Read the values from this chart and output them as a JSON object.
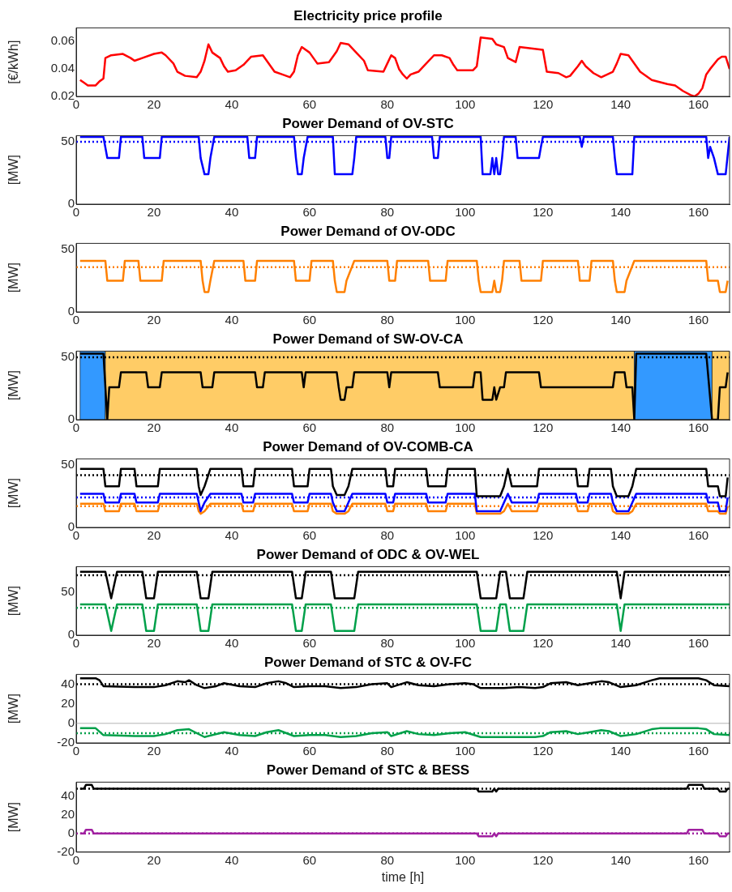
{
  "chart_data": [
    {
      "type": "line",
      "title": "Electricity price profile",
      "ylabel": "[€/kWh]",
      "xlim": [
        0,
        168
      ],
      "xticks": [
        0,
        20,
        40,
        60,
        80,
        100,
        120,
        140,
        160
      ],
      "ylim": [
        0.02,
        0.07
      ],
      "yticks": [
        0.02,
        0.04,
        0.06
      ],
      "line_style": "solid",
      "series": [
        {
          "color": "#ff0000",
          "x": [
            1,
            2,
            3,
            5,
            6,
            7,
            7.5,
            9,
            12,
            14,
            15,
            17,
            20,
            22,
            23,
            25,
            26,
            28,
            31,
            32,
            33,
            34,
            35,
            37,
            38,
            39,
            41,
            43,
            45,
            48,
            49,
            51,
            53,
            55,
            56,
            57,
            58,
            60,
            61,
            62,
            65,
            67,
            68,
            70,
            72,
            74,
            75,
            79,
            80,
            81,
            82,
            83,
            84,
            85,
            86,
            88,
            90,
            92,
            94,
            96,
            97,
            98,
            102,
            103,
            104,
            107,
            108,
            110,
            111,
            113,
            114,
            117,
            120,
            121,
            124,
            126,
            127,
            129,
            130,
            131,
            133,
            135,
            138,
            139,
            140,
            142,
            143,
            145,
            148,
            152,
            154,
            156,
            158,
            159,
            160,
            161,
            162,
            163,
            165,
            166,
            167,
            168
          ],
          "values": [
            0.032,
            0.03,
            0.028,
            0.028,
            0.031,
            0.033,
            0.048,
            0.05,
            0.051,
            0.048,
            0.046,
            0.048,
            0.051,
            0.052,
            0.05,
            0.044,
            0.038,
            0.035,
            0.034,
            0.038,
            0.046,
            0.058,
            0.052,
            0.048,
            0.042,
            0.038,
            0.039,
            0.043,
            0.049,
            0.05,
            0.046,
            0.038,
            0.036,
            0.034,
            0.038,
            0.05,
            0.056,
            0.052,
            0.048,
            0.044,
            0.045,
            0.053,
            0.059,
            0.058,
            0.052,
            0.046,
            0.039,
            0.038,
            0.044,
            0.05,
            0.048,
            0.04,
            0.036,
            0.033,
            0.036,
            0.038,
            0.044,
            0.05,
            0.05,
            0.048,
            0.043,
            0.039,
            0.039,
            0.042,
            0.063,
            0.062,
            0.058,
            0.056,
            0.048,
            0.045,
            0.056,
            0.055,
            0.054,
            0.038,
            0.037,
            0.034,
            0.035,
            0.042,
            0.046,
            0.042,
            0.037,
            0.034,
            0.038,
            0.044,
            0.051,
            0.05,
            0.046,
            0.038,
            0.032,
            0.029,
            0.028,
            0.024,
            0.021,
            0.02,
            0.022,
            0.026,
            0.036,
            0.04,
            0.047,
            0.049,
            0.049,
            0.04
          ]
        }
      ]
    },
    {
      "type": "line",
      "title": "Power Demand of OV-STC",
      "ylabel": "[MW]",
      "xlim": [
        0,
        168
      ],
      "xticks": [
        0,
        20,
        40,
        60,
        80,
        100,
        120,
        140,
        160
      ],
      "ylim": [
        0,
        55
      ],
      "yticks": [
        0,
        50
      ],
      "line_style": "solid",
      "ref_lines": [
        {
          "axis": "y",
          "value": 50,
          "color": "#0000ff",
          "line_style": "dotted"
        }
      ],
      "series": [
        {
          "color": "#0000ff",
          "x": [
            1,
            7,
            8,
            11,
            11.5,
            17,
            17.5,
            21.5,
            22,
            31.5,
            32,
            33,
            34,
            34.5,
            35.5,
            44,
            44.5,
            46,
            46.5,
            56,
            56.5,
            57,
            58,
            58.5,
            59.5,
            66,
            66.5,
            71,
            71.5,
            72,
            79.5,
            80,
            80.5,
            81,
            91.5,
            92,
            93,
            93.5,
            104,
            104.5,
            106.5,
            107,
            107.5,
            108,
            108.5,
            109,
            109.5,
            110,
            113,
            113.5,
            119,
            119.5,
            120,
            129.5,
            130,
            130.5,
            138,
            138.5,
            139,
            143,
            143.5,
            162,
            162.5,
            163,
            164,
            165,
            167,
            168
          ],
          "values": [
            54,
            54,
            37,
            37,
            54,
            54,
            37,
            37,
            54,
            54,
            37,
            24,
            24,
            37,
            54,
            54,
            37,
            37,
            54,
            54,
            37,
            24,
            24,
            37,
            54,
            54,
            24,
            24,
            37,
            54,
            54,
            37,
            37,
            54,
            54,
            37,
            37,
            54,
            54,
            24,
            24,
            37,
            24,
            37,
            24,
            24,
            37,
            54,
            54,
            37,
            37,
            46,
            54,
            54,
            46,
            54,
            54,
            37,
            24,
            24,
            54,
            54,
            37,
            46,
            37,
            24,
            24,
            54
          ]
        }
      ]
    },
    {
      "type": "line",
      "title": "Power Demand of OV-ODC",
      "ylabel": "[MW]",
      "xlim": [
        0,
        168
      ],
      "xticks": [
        0,
        20,
        40,
        60,
        80,
        100,
        120,
        140,
        160
      ],
      "ylim": [
        0,
        55
      ],
      "yticks": [
        0,
        50
      ],
      "line_style": "solid",
      "ref_lines": [
        {
          "axis": "y",
          "value": 36,
          "color": "#ff8000",
          "line_style": "dotted"
        }
      ],
      "series": [
        {
          "color": "#ff8000",
          "x": [
            1,
            7.5,
            8,
            12,
            12.5,
            16,
            16.5,
            22,
            22.5,
            32,
            32.5,
            33,
            34,
            34.5,
            35.5,
            43,
            43.5,
            46,
            46.5,
            56,
            56.5,
            60,
            60.5,
            66,
            66.5,
            67,
            69,
            69.5,
            71.5,
            80,
            80.5,
            82,
            82.5,
            90.5,
            91,
            95,
            95.5,
            103,
            103.5,
            104,
            107,
            107.5,
            108,
            109,
            109.5,
            110,
            114,
            114.5,
            119.5,
            120,
            129,
            129.5,
            132,
            132.5,
            138,
            138.5,
            139,
            141,
            141.5,
            143.5,
            162,
            162.5,
            165,
            165.5,
            167,
            167.5
          ],
          "values": [
            41,
            41,
            25,
            25,
            41,
            41,
            25,
            25,
            41,
            41,
            25,
            16,
            16,
            25,
            41,
            41,
            25,
            25,
            41,
            41,
            25,
            25,
            41,
            41,
            25,
            16,
            16,
            25,
            41,
            41,
            25,
            25,
            41,
            41,
            25,
            25,
            41,
            41,
            25,
            16,
            16,
            25,
            16,
            16,
            25,
            41,
            41,
            25,
            25,
            41,
            41,
            25,
            25,
            41,
            41,
            25,
            16,
            16,
            25,
            41,
            41,
            25,
            25,
            16,
            16,
            25
          ]
        }
      ]
    },
    {
      "type": "line",
      "title": "Power Demand of SW-OV-CA",
      "ylabel": "[MW]",
      "xlim": [
        0,
        168
      ],
      "xticks": [
        0,
        20,
        40,
        60,
        80,
        100,
        120,
        140,
        160
      ],
      "ylim": [
        0,
        55
      ],
      "yticks": [
        0,
        50
      ],
      "line_style": "solid",
      "bands": [
        {
          "axis": "x",
          "from": 1,
          "to": 7.5,
          "color": "#3399ff"
        },
        {
          "axis": "x",
          "from": 7.5,
          "to": 143.5,
          "color": "#ffcc66"
        },
        {
          "axis": "x",
          "from": 143.5,
          "to": 163.5,
          "color": "#3399ff"
        },
        {
          "axis": "x",
          "from": 163.5,
          "to": 168,
          "color": "#ffcc66"
        }
      ],
      "ref_lines": [
        {
          "axis": "y",
          "value": 50,
          "color": "#000000",
          "line_style": "dotted"
        }
      ],
      "series": [
        {
          "color": "#000000",
          "x": [
            1,
            7,
            8,
            8.5,
            11,
            11.5,
            18,
            18.5,
            21.5,
            22,
            32,
            32.5,
            35,
            35.5,
            46,
            46.5,
            48,
            48.5,
            58,
            58.5,
            59,
            67,
            67.5,
            68,
            69,
            69.5,
            71,
            71.5,
            80,
            80.5,
            81,
            93,
            93.5,
            102,
            102.5,
            104,
            104.5,
            107,
            107.5,
            108,
            109,
            110,
            110.5,
            119,
            119.5,
            138,
            138.5,
            141,
            141.5,
            143,
            143.5,
            144,
            162,
            163.5,
            165,
            165.5,
            167,
            167.5
          ],
          "values": [
            53,
            53,
            0,
            26,
            26,
            38,
            38,
            26,
            26,
            38,
            38,
            26,
            26,
            38,
            38,
            26,
            26,
            38,
            38,
            26,
            38,
            38,
            26,
            16,
            16,
            26,
            26,
            38,
            38,
            26,
            38,
            38,
            26,
            26,
            38,
            38,
            16,
            16,
            26,
            16,
            26,
            26,
            38,
            38,
            26,
            26,
            38,
            38,
            26,
            26,
            0,
            53,
            53,
            0,
            0,
            26,
            26,
            38
          ]
        }
      ]
    },
    {
      "type": "line",
      "title": "Power Demand of OV-COMB-CA",
      "ylabel": "[MW]",
      "xlim": [
        0,
        168
      ],
      "xticks": [
        0,
        20,
        40,
        60,
        80,
        100,
        120,
        140,
        160
      ],
      "ylim": [
        0,
        55
      ],
      "yticks": [
        0,
        50
      ],
      "line_style": "solid",
      "ref_lines": [
        {
          "axis": "y",
          "value": 42,
          "color": "#000000",
          "line_style": "dotted"
        },
        {
          "axis": "y",
          "value": 24,
          "color": "#0000ff",
          "line_style": "dotted"
        },
        {
          "axis": "y",
          "value": 17,
          "color": "#ff8000",
          "line_style": "dotted"
        }
      ],
      "series": [
        {
          "color": "#000000",
          "x": [
            1,
            7,
            7.5,
            11,
            11.5,
            15,
            15.5,
            21,
            21.5,
            31,
            31.5,
            32,
            33,
            34.5,
            42.5,
            43,
            45.5,
            46,
            55.5,
            56,
            59.5,
            60,
            65.5,
            66,
            67,
            69,
            70,
            71,
            79.5,
            80,
            81.5,
            82,
            90,
            90.5,
            95,
            95.5,
            102.5,
            103,
            109,
            110,
            111,
            112,
            118.5,
            119,
            128.5,
            129,
            131.5,
            132,
            137.5,
            138,
            139,
            142,
            143,
            144,
            162,
            162.5,
            165,
            165.5,
            167,
            167.5
          ],
          "values": [
            47,
            47,
            33,
            33,
            47,
            47,
            33,
            33,
            47,
            47,
            33,
            26,
            33,
            47,
            47,
            33,
            33,
            47,
            47,
            33,
            33,
            47,
            47,
            33,
            26,
            26,
            33,
            47,
            47,
            33,
            33,
            47,
            47,
            33,
            33,
            47,
            47,
            25,
            25,
            33,
            47,
            33,
            33,
            47,
            47,
            33,
            33,
            47,
            47,
            33,
            25,
            25,
            33,
            47,
            47,
            33,
            33,
            25,
            25,
            40
          ]
        },
        {
          "color": "#0000ff",
          "x": [
            1,
            7,
            7.5,
            11,
            11.5,
            15,
            15.5,
            21,
            21.5,
            31,
            31.5,
            32,
            33,
            34.5,
            42.5,
            43,
            45.5,
            46,
            55.5,
            56,
            59.5,
            60,
            65.5,
            66,
            67,
            69,
            70,
            71,
            79.5,
            80,
            81.5,
            82,
            90,
            90.5,
            95,
            95.5,
            102.5,
            103,
            109,
            110,
            111,
            112,
            118.5,
            119,
            128.5,
            129,
            131.5,
            132,
            137.5,
            138,
            139,
            142,
            143,
            144,
            162,
            162.5,
            165,
            165.5,
            167,
            167.5
          ],
          "values": [
            27,
            27,
            20,
            20,
            27,
            27,
            20,
            20,
            27,
            27,
            20,
            13,
            20,
            27,
            27,
            20,
            20,
            27,
            27,
            20,
            20,
            27,
            27,
            20,
            13,
            13,
            20,
            27,
            27,
            20,
            20,
            27,
            27,
            20,
            20,
            27,
            27,
            13,
            13,
            20,
            27,
            20,
            20,
            27,
            27,
            20,
            20,
            27,
            27,
            20,
            13,
            13,
            20,
            27,
            27,
            20,
            20,
            13,
            13,
            24
          ]
        },
        {
          "color": "#ff8000",
          "x": [
            1,
            7,
            7.5,
            11,
            11.5,
            15,
            15.5,
            21,
            21.5,
            31,
            31.5,
            32,
            33,
            34.5,
            42.5,
            43,
            45.5,
            46,
            55.5,
            56,
            59.5,
            60,
            65.5,
            66,
            67,
            69,
            70,
            71,
            79.5,
            80,
            81.5,
            82,
            90,
            90.5,
            95,
            95.5,
            102.5,
            103,
            109,
            110,
            111,
            112,
            118.5,
            119,
            128.5,
            129,
            131.5,
            132,
            137.5,
            138,
            139,
            142,
            143,
            144,
            162,
            162.5,
            165,
            165.5,
            167,
            167.5
          ],
          "values": [
            19,
            19,
            13,
            13,
            19,
            19,
            13,
            13,
            19,
            19,
            13,
            11,
            13,
            19,
            19,
            13,
            13,
            19,
            19,
            13,
            13,
            19,
            19,
            13,
            11,
            11,
            13,
            19,
            19,
            13,
            13,
            19,
            19,
            13,
            13,
            19,
            19,
            11,
            11,
            13,
            19,
            13,
            13,
            19,
            19,
            13,
            13,
            19,
            19,
            13,
            11,
            11,
            13,
            19,
            19,
            13,
            13,
            11,
            11,
            17
          ]
        }
      ]
    },
    {
      "type": "line",
      "title": "Power Demand of ODC & OV-WEL",
      "ylabel": "[MW]",
      "xlim": [
        0,
        168
      ],
      "xticks": [
        0,
        20,
        40,
        60,
        80,
        100,
        120,
        140,
        160
      ],
      "ylim": [
        0,
        80
      ],
      "yticks": [
        0,
        50
      ],
      "line_style": "solid",
      "ref_lines": [
        {
          "axis": "y",
          "value": 70,
          "color": "#000000",
          "line_style": "dotted"
        },
        {
          "axis": "y",
          "value": 32,
          "color": "#00a04a",
          "line_style": "dotted"
        }
      ],
      "series": [
        {
          "color": "#000000",
          "x": [
            1,
            7.5,
            9,
            10.5,
            17,
            18,
            20,
            21,
            31,
            32,
            34,
            35,
            55.5,
            56.5,
            58,
            59,
            65.5,
            66.5,
            71.5,
            72.5,
            103,
            104,
            108,
            109,
            110.5,
            111.5,
            115,
            116,
            139,
            140,
            141,
            168
          ],
          "values": [
            74,
            74,
            43,
            74,
            74,
            43,
            43,
            74,
            74,
            43,
            43,
            74,
            74,
            43,
            43,
            74,
            74,
            43,
            43,
            74,
            74,
            43,
            43,
            74,
            74,
            43,
            43,
            74,
            74,
            43,
            74,
            74
          ]
        },
        {
          "color": "#00a04a",
          "x": [
            1,
            7.5,
            9,
            10.5,
            17,
            18,
            20,
            21,
            31,
            32,
            34,
            35,
            55.5,
            56.5,
            58,
            59,
            65.5,
            66.5,
            71.5,
            72.5,
            103,
            104,
            108,
            109,
            110.5,
            111.5,
            115,
            116,
            139,
            140,
            141,
            168
          ],
          "values": [
            36,
            36,
            5,
            36,
            36,
            5,
            5,
            36,
            36,
            5,
            5,
            36,
            36,
            5,
            5,
            36,
            36,
            5,
            5,
            36,
            36,
            5,
            5,
            36,
            36,
            5,
            5,
            36,
            36,
            5,
            36,
            36
          ]
        }
      ]
    },
    {
      "type": "line",
      "title": "Power Demand of STC & OV-FC",
      "ylabel": "[MW]",
      "xlim": [
        0,
        168
      ],
      "xticks": [
        0,
        20,
        40,
        60,
        80,
        100,
        120,
        140,
        160
      ],
      "ylim": [
        -20,
        50
      ],
      "yticks": [
        -20,
        0,
        20,
        40
      ],
      "line_style": "solid",
      "ref_lines": [
        {
          "axis": "y",
          "value": 0,
          "color": "#b4b4b4",
          "line_style": "solid"
        },
        {
          "axis": "y",
          "value": 40,
          "color": "#000000",
          "line_style": "dotted"
        },
        {
          "axis": "y",
          "value": -10,
          "color": "#00a04a",
          "line_style": "dotted"
        }
      ],
      "series": [
        {
          "color": "#000000",
          "x": [
            1,
            5,
            6,
            7,
            15,
            20,
            23,
            26,
            28,
            29,
            31,
            33,
            36,
            38,
            42,
            46,
            49,
            52,
            54,
            56,
            60,
            64,
            68,
            72,
            76,
            80,
            81,
            85,
            88,
            92,
            96,
            100,
            102,
            104,
            110,
            114,
            118,
            120,
            122,
            126,
            129,
            132,
            135,
            137,
            140,
            144,
            148,
            150,
            160,
            162,
            164,
            168
          ],
          "values": [
            46,
            46,
            44,
            38,
            37,
            37,
            39,
            43,
            42,
            44,
            39,
            36,
            38,
            41,
            38,
            37,
            41,
            43,
            41,
            37,
            38,
            38,
            36,
            37,
            40,
            41,
            37,
            42,
            39,
            38,
            40,
            41,
            40,
            36,
            36,
            37,
            36,
            37,
            41,
            42,
            39,
            41,
            43,
            42,
            37,
            39,
            44,
            46,
            46,
            44,
            39,
            38
          ]
        },
        {
          "color": "#00a04a",
          "x": [
            1,
            5,
            7,
            15,
            20,
            23,
            26,
            29,
            33,
            38,
            42,
            46,
            49,
            52,
            56,
            60,
            64,
            68,
            72,
            76,
            80,
            81,
            85,
            88,
            92,
            96,
            100,
            104,
            110,
            118,
            120,
            122,
            126,
            129,
            132,
            135,
            137,
            140,
            144,
            148,
            150,
            160,
            162,
            164,
            168
          ],
          "values": [
            -5,
            -5,
            -12,
            -13,
            -13,
            -11,
            -7,
            -6,
            -14,
            -9,
            -12,
            -13,
            -9,
            -7,
            -13,
            -12,
            -12,
            -14,
            -13,
            -10,
            -9,
            -13,
            -8,
            -11,
            -12,
            -10,
            -9,
            -14,
            -14,
            -14,
            -13,
            -9,
            -8,
            -11,
            -9,
            -7,
            -8,
            -13,
            -11,
            -6,
            -5,
            -5,
            -6,
            -11,
            -12
          ]
        }
      ]
    },
    {
      "type": "line",
      "title": "Power Demand of STC & BESS",
      "xlabel": "time [h]",
      "ylabel": "[MW]",
      "xlim": [
        0,
        168
      ],
      "xticks": [
        0,
        20,
        40,
        60,
        80,
        100,
        120,
        140,
        160
      ],
      "ylim": [
        -20,
        55
      ],
      "yticks": [
        -20,
        0,
        20,
        40
      ],
      "line_style": "solid",
      "ref_lines": [
        {
          "axis": "y",
          "value": 48,
          "color": "#000000",
          "line_style": "dotted"
        },
        {
          "axis": "y",
          "value": 0,
          "color": "#a020a0",
          "line_style": "dotted"
        }
      ],
      "series": [
        {
          "color": "#000000",
          "x": [
            1,
            2,
            2.5,
            4,
            4.5,
            103,
            103.5,
            107,
            107.5,
            108,
            108.5,
            157,
            157.5,
            161,
            161.5,
            165,
            165.5,
            167,
            167.5,
            168
          ],
          "values": [
            48,
            48,
            52,
            52,
            48,
            48,
            45,
            45,
            48,
            45,
            48,
            48,
            52,
            52,
            48,
            48,
            45,
            45,
            48,
            48
          ]
        },
        {
          "color": "#a020a0",
          "x": [
            1,
            2,
            2.5,
            4,
            4.5,
            103,
            103.5,
            107,
            107.5,
            108,
            108.5,
            157,
            157.5,
            161,
            161.5,
            165,
            165.5,
            167,
            167.5,
            168
          ],
          "values": [
            0,
            0,
            4,
            4,
            0,
            0,
            -3,
            -3,
            0,
            -3,
            0,
            0,
            4,
            4,
            0,
            0,
            -3,
            -3,
            0,
            0
          ]
        }
      ]
    }
  ]
}
